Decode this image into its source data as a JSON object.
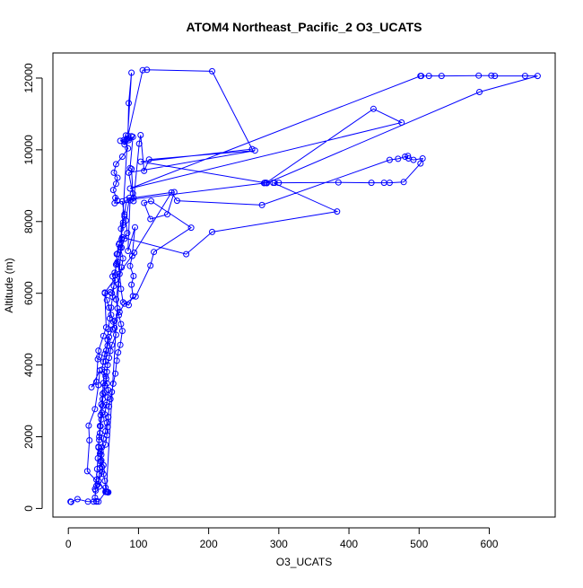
{
  "chart_data": {
    "type": "line",
    "title": "ATOM4 Northeast_Pacific_2 O3_UCATS",
    "xlabel": "O3_UCATS",
    "ylabel": "Altitude (m)",
    "xlim": [
      -22,
      694
    ],
    "ylim": [
      -240,
      12700
    ],
    "xticks": [
      0,
      100,
      200,
      300,
      400,
      500,
      600
    ],
    "yticks": [
      0,
      2000,
      4000,
      6000,
      8000,
      10000,
      12000
    ],
    "marker": "open-circle",
    "grid": false,
    "legend": "none",
    "colors": {
      "series": "#0000ff",
      "axes": "#000000",
      "background": "#ffffff"
    },
    "series": [
      {
        "points": [
          [
            3,
            190
          ],
          [
            4,
            180
          ],
          [
            13,
            260
          ],
          [
            28,
            190
          ],
          [
            36,
            190
          ],
          [
            40,
            190
          ],
          [
            43,
            190
          ],
          [
            53,
            460
          ],
          [
            55,
            460
          ],
          [
            57,
            450
          ],
          [
            53,
            470
          ],
          [
            56,
            450
          ],
          [
            27,
            1040
          ],
          [
            30,
            1900
          ],
          [
            29,
            2310
          ],
          [
            38,
            2770
          ],
          [
            43,
            3440
          ],
          [
            45,
            3850
          ],
          [
            33,
            3380
          ],
          [
            40,
            3530
          ],
          [
            42,
            4160
          ],
          [
            44,
            4230
          ],
          [
            43,
            4400
          ],
          [
            50,
            4810
          ],
          [
            54,
            5050
          ],
          [
            52,
            6000
          ],
          [
            60,
            6030
          ],
          [
            62,
            6000
          ],
          [
            67,
            6370
          ],
          [
            63,
            6470
          ],
          [
            66,
            6570
          ],
          [
            69,
            6830
          ],
          [
            69,
            7090
          ],
          [
            72,
            7360
          ],
          [
            76,
            7510
          ],
          [
            75,
            7800
          ],
          [
            78,
            7970
          ],
          [
            80,
            8140
          ],
          [
            77,
            8560
          ],
          [
            66,
            8510
          ],
          [
            67,
            8660
          ],
          [
            70,
            8580
          ],
          [
            64,
            8880
          ],
          [
            68,
            9050
          ],
          [
            70,
            9220
          ],
          [
            65,
            9360
          ],
          [
            68,
            9600
          ],
          [
            77,
            9810
          ],
          [
            85,
            10040
          ],
          [
            80,
            10230
          ],
          [
            74,
            10250
          ],
          [
            79,
            10270
          ],
          [
            83,
            10300
          ],
          [
            86,
            10320
          ],
          [
            90,
            10380
          ],
          [
            86,
            10270
          ],
          [
            82,
            10400
          ],
          [
            80,
            10150
          ],
          [
            92,
            10360
          ],
          [
            88,
            9490
          ],
          [
            90,
            9470
          ],
          [
            92,
            8780
          ],
          [
            88,
            8590
          ],
          [
            85,
            7180
          ],
          [
            95,
            7840
          ],
          [
            91,
            7040
          ],
          [
            88,
            6760
          ],
          [
            93,
            6480
          ],
          [
            90,
            6240
          ],
          [
            92,
            5920
          ],
          [
            86,
            5670
          ],
          [
            78,
            5750
          ],
          [
            75,
            6120
          ],
          [
            73,
            6540
          ],
          [
            70,
            6870
          ],
          [
            76,
            7270
          ],
          [
            80,
            7520
          ],
          [
            84,
            7680
          ],
          [
            82,
            8030
          ],
          [
            87,
            8660
          ],
          [
            93,
            8570
          ],
          [
            101,
            10170
          ],
          [
            103,
            10410
          ],
          [
            108,
            9410
          ],
          [
            115,
            9730
          ],
          [
            266,
            9980
          ],
          [
            86,
            9360
          ],
          [
            93,
            8660
          ],
          [
            151,
            8820
          ],
          [
            141,
            8200
          ],
          [
            117,
            8070
          ],
          [
            108,
            8520
          ],
          [
            118,
            8570
          ],
          [
            175,
            7830
          ],
          [
            122,
            7150
          ],
          [
            117,
            6770
          ],
          [
            96,
            5910
          ],
          [
            80,
            5710
          ],
          [
            73,
            5480
          ],
          [
            66,
            5240
          ],
          [
            63,
            4990
          ],
          [
            58,
            4780
          ],
          [
            56,
            4540
          ],
          [
            52,
            4310
          ],
          [
            50,
            4090
          ],
          [
            48,
            3870
          ],
          [
            53,
            3690
          ],
          [
            55,
            3490
          ],
          [
            57,
            3300
          ],
          [
            56,
            3100
          ],
          [
            54,
            2880
          ],
          [
            52,
            2620
          ],
          [
            55,
            2390
          ],
          [
            53,
            2150
          ],
          [
            50,
            1950
          ],
          [
            48,
            1710
          ],
          [
            47,
            1500
          ],
          [
            46,
            1310
          ],
          [
            45,
            1130
          ],
          [
            44,
            950
          ],
          [
            43,
            760
          ],
          [
            44,
            610
          ],
          [
            38,
            540
          ],
          [
            40,
            630
          ],
          [
            42,
            680
          ],
          [
            48,
            1030
          ],
          [
            50,
            1210
          ],
          [
            46,
            1590
          ],
          [
            53,
            1780
          ],
          [
            55,
            2040
          ],
          [
            56,
            2270
          ],
          [
            57,
            2550
          ],
          [
            58,
            2840
          ],
          [
            60,
            3050
          ],
          [
            62,
            3250
          ],
          [
            64,
            3480
          ],
          [
            67,
            3760
          ],
          [
            69,
            4120
          ],
          [
            71,
            4350
          ],
          [
            74,
            4560
          ],
          [
            77,
            4950
          ],
          [
            75,
            5140
          ],
          [
            72,
            5390
          ],
          [
            70,
            5580
          ],
          [
            68,
            5830
          ],
          [
            71,
            6250
          ],
          [
            76,
            6720
          ],
          [
            78,
            6970
          ],
          [
            74,
            7270
          ],
          [
            77,
            7560
          ],
          [
            168,
            7090
          ],
          [
            205,
            7710
          ],
          [
            383,
            8280
          ],
          [
            292,
            9080
          ],
          [
            294,
            9080
          ],
          [
            300,
            9080
          ],
          [
            385,
            9090
          ],
          [
            432,
            9080
          ],
          [
            450,
            9080
          ],
          [
            458,
            9080
          ],
          [
            478,
            9100
          ],
          [
            502,
            9620
          ],
          [
            505,
            9760
          ],
          [
            492,
            9720
          ],
          [
            485,
            9760
          ],
          [
            480,
            9810
          ],
          [
            484,
            9830
          ],
          [
            470,
            9750
          ],
          [
            458,
            9720
          ],
          [
            276,
            8460
          ],
          [
            155,
            8580
          ],
          [
            147,
            8810
          ],
          [
            94,
            7130
          ],
          [
            52,
            6020
          ],
          [
            55,
            5810
          ],
          [
            58,
            5600
          ],
          [
            61,
            5400
          ],
          [
            64,
            5210
          ],
          [
            66,
            5030
          ],
          [
            68,
            4840
          ],
          [
            62,
            4560
          ],
          [
            60,
            4390
          ],
          [
            58,
            4200
          ],
          [
            56,
            4000
          ],
          [
            55,
            3810
          ],
          [
            54,
            3620
          ],
          [
            52,
            3430
          ],
          [
            51,
            3240
          ],
          [
            49,
            3050
          ],
          [
            49,
            2860
          ],
          [
            48,
            2670
          ],
          [
            47,
            2480
          ],
          [
            46,
            2290
          ],
          [
            45,
            2100
          ],
          [
            44,
            1910
          ],
          [
            43,
            1720
          ],
          [
            45,
            1530
          ],
          [
            47,
            1340
          ],
          [
            48,
            1150
          ],
          [
            50,
            960
          ],
          [
            52,
            770
          ],
          [
            53,
            580
          ],
          [
            54,
            470
          ],
          [
            90,
            12150
          ],
          [
            86,
            11300
          ],
          [
            85,
            10390
          ],
          [
            106,
            12220
          ],
          [
            112,
            12230
          ],
          [
            205,
            12190
          ],
          [
            262,
            10020
          ],
          [
            103,
            9670
          ],
          [
            280,
            9080
          ],
          [
            282,
            9080
          ],
          [
            435,
            11140
          ],
          [
            475,
            10760
          ],
          [
            88,
            8920
          ],
          [
            502,
            12060
          ],
          [
            503,
            12060
          ],
          [
            514,
            12060
          ],
          [
            532,
            12060
          ],
          [
            585,
            12070
          ],
          [
            603,
            12070
          ],
          [
            608,
            12060
          ],
          [
            651,
            12060
          ],
          [
            669,
            12060
          ],
          [
            586,
            11610
          ],
          [
            283,
            9070
          ],
          [
            279,
            9070
          ],
          [
            83,
            8600
          ],
          [
            80,
            8200
          ],
          [
            78,
            7900
          ],
          [
            73,
            7400
          ],
          [
            70,
            7100
          ],
          [
            68,
            6800
          ],
          [
            67,
            6500
          ],
          [
            65,
            6200
          ],
          [
            63,
            5900
          ],
          [
            61,
            5600
          ],
          [
            59,
            5300
          ],
          [
            57,
            5000
          ],
          [
            56,
            4700
          ],
          [
            54,
            4400
          ],
          [
            53,
            4100
          ],
          [
            51,
            3800
          ],
          [
            50,
            3500
          ],
          [
            49,
            3200
          ],
          [
            47,
            2900
          ],
          [
            46,
            2600
          ],
          [
            45,
            2300
          ],
          [
            44,
            2000
          ],
          [
            43,
            1700
          ],
          [
            42,
            1400
          ],
          [
            41,
            1100
          ],
          [
            40,
            800
          ],
          [
            39,
            500
          ],
          [
            38,
            300
          ],
          [
            40,
            200
          ]
        ]
      }
    ]
  }
}
